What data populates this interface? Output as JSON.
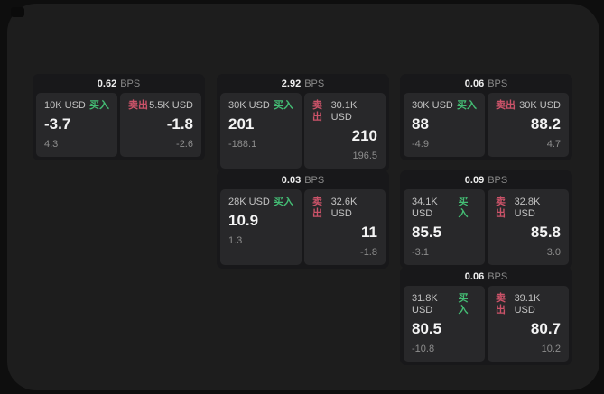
{
  "labels": {
    "bps_unit": "BPS",
    "buy": "买入",
    "sell": "卖出"
  },
  "colors": {
    "buy": "#44bd74",
    "sell": "#cc5369"
  },
  "cards": [
    {
      "bps": "0.62",
      "buy": {
        "volume": "10K USD",
        "price": "-3.7",
        "delta": "4.3"
      },
      "sell": {
        "volume": "5.5K USD",
        "price": "-1.8",
        "delta": "-2.6"
      }
    },
    {
      "bps": "2.92",
      "buy": {
        "volume": "30K USD",
        "price": "201",
        "delta": "-188.1"
      },
      "sell": {
        "volume": "30.1K USD",
        "price": "210",
        "delta": "196.5"
      }
    },
    {
      "bps": "0.06",
      "buy": {
        "volume": "30K USD",
        "price": "88",
        "delta": "-4.9"
      },
      "sell": {
        "volume": "30K USD",
        "price": "88.2",
        "delta": "4.7"
      }
    },
    {
      "bps": "0.03",
      "buy": {
        "volume": "28K USD",
        "price": "10.9",
        "delta": "1.3"
      },
      "sell": {
        "volume": "32.6K USD",
        "price": "11",
        "delta": "-1.8"
      }
    },
    {
      "bps": "0.09",
      "buy": {
        "volume": "34.1K USD",
        "price": "85.5",
        "delta": "-3.1"
      },
      "sell": {
        "volume": "32.8K USD",
        "price": "85.8",
        "delta": "3.0"
      }
    },
    {
      "bps": "0.06",
      "buy": {
        "volume": "31.8K USD",
        "price": "80.5",
        "delta": "-10.8"
      },
      "sell": {
        "volume": "39.1K USD",
        "price": "80.7",
        "delta": "10.2"
      }
    }
  ]
}
